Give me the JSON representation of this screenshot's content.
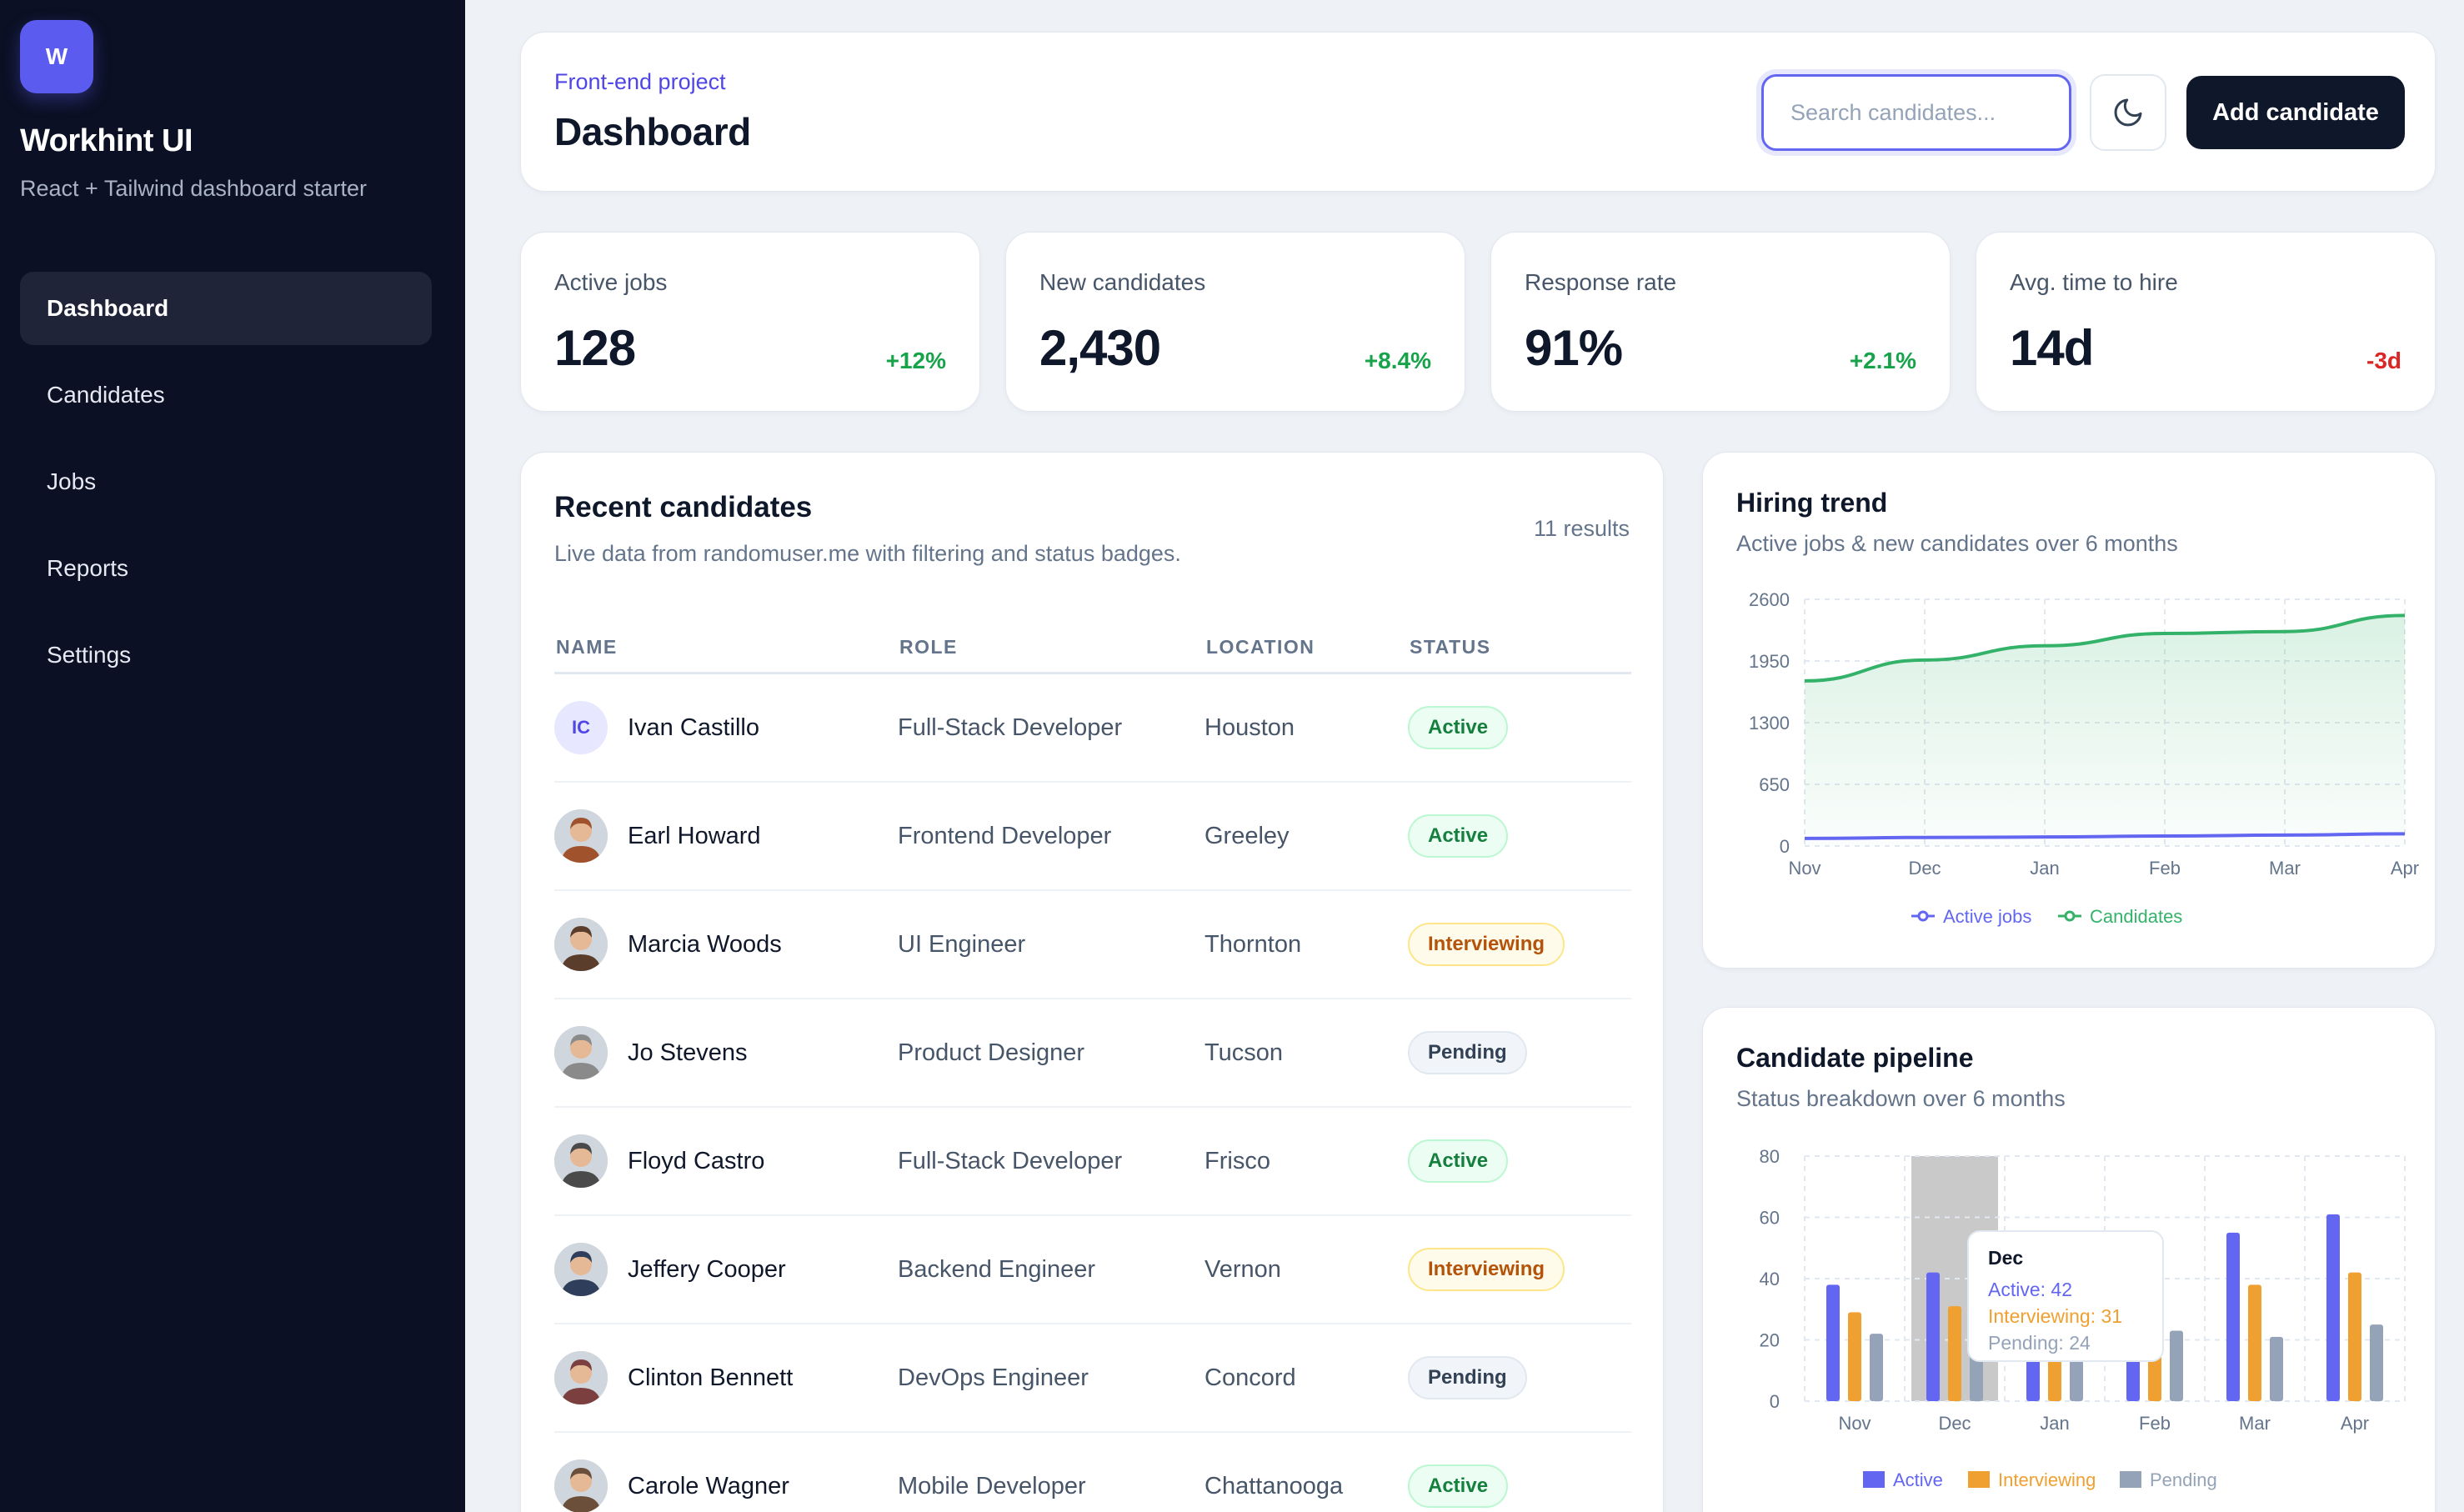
{
  "sidebar": {
    "logo_letter": "W",
    "brand": "Workhint UI",
    "tagline": "React + Tailwind dashboard starter",
    "items": [
      {
        "label": "Dashboard",
        "active": true
      },
      {
        "label": "Candidates",
        "active": false
      },
      {
        "label": "Jobs",
        "active": false
      },
      {
        "label": "Reports",
        "active": false
      },
      {
        "label": "Settings",
        "active": false
      }
    ]
  },
  "header": {
    "eyebrow": "Front-end project",
    "title": "Dashboard",
    "search_placeholder": "Search candidates...",
    "theme_icon": "moon-icon",
    "add_label": "Add candidate"
  },
  "stats": [
    {
      "label": "Active jobs",
      "value": "128",
      "delta": "+12%",
      "trend": "up"
    },
    {
      "label": "New candidates",
      "value": "2,430",
      "delta": "+8.4%",
      "trend": "up"
    },
    {
      "label": "Response rate",
      "value": "91%",
      "delta": "+2.1%",
      "trend": "up"
    },
    {
      "label": "Avg. time to hire",
      "value": "14d",
      "delta": "-3d",
      "trend": "down"
    }
  ],
  "candidates": {
    "title": "Recent candidates",
    "subtitle": "Live data from randomuser.me with filtering and status badges.",
    "count": "11 results",
    "columns": [
      "NAME",
      "ROLE",
      "LOCATION",
      "STATUS"
    ],
    "rows": [
      {
        "name": "Ivan Castillo",
        "initials": "IC",
        "role": "Full-Stack Developer",
        "location": "Houston",
        "status": "Active"
      },
      {
        "name": "Earl Howard",
        "role": "Frontend Developer",
        "location": "Greeley",
        "status": "Active"
      },
      {
        "name": "Marcia Woods",
        "role": "UI Engineer",
        "location": "Thornton",
        "status": "Interviewing"
      },
      {
        "name": "Jo Stevens",
        "role": "Product Designer",
        "location": "Tucson",
        "status": "Pending"
      },
      {
        "name": "Floyd Castro",
        "role": "Full-Stack Developer",
        "location": "Frisco",
        "status": "Active"
      },
      {
        "name": "Jeffery Cooper",
        "role": "Backend Engineer",
        "location": "Vernon",
        "status": "Interviewing"
      },
      {
        "name": "Clinton Bennett",
        "role": "DevOps Engineer",
        "location": "Concord",
        "status": "Pending"
      },
      {
        "name": "Carole Wagner",
        "role": "Mobile Developer",
        "location": "Chattanooga",
        "status": "Active"
      }
    ]
  },
  "colors": {
    "accent": "#5b5bf0",
    "active": "#6366f1",
    "interviewing": "#f0a030",
    "pending": "#94a3b8",
    "candidates_line": "#34b26a"
  },
  "chart_data": [
    {
      "type": "area",
      "title": "Hiring trend",
      "subtitle": "Active jobs & new candidates over 6 months",
      "categories": [
        "Nov",
        "Dec",
        "Jan",
        "Feb",
        "Mar",
        "Apr"
      ],
      "ylim": [
        0,
        2600
      ],
      "yticks": [
        "0",
        "650",
        "1300",
        "1950",
        "2600"
      ],
      "grid": true,
      "legend_position": "bottom",
      "series": [
        {
          "name": "Active jobs",
          "values": [
            80,
            90,
            95,
            105,
            115,
            128
          ]
        },
        {
          "name": "Candidates",
          "values": [
            1740,
            1960,
            2110,
            2240,
            2260,
            2430
          ]
        }
      ]
    },
    {
      "type": "bar",
      "title": "Candidate pipeline",
      "subtitle": "Status breakdown over 6 months",
      "categories": [
        "Nov",
        "Dec",
        "Jan",
        "Feb",
        "Mar",
        "Apr"
      ],
      "ylim": [
        0,
        80
      ],
      "yticks": [
        "0",
        "20",
        "40",
        "60",
        "80"
      ],
      "grid": true,
      "legend_position": "bottom",
      "series": [
        {
          "name": "Active",
          "values": [
            38,
            42,
            44,
            48,
            55,
            61
          ]
        },
        {
          "name": "Interviewing",
          "values": [
            29,
            31,
            30,
            35,
            38,
            42
          ]
        },
        {
          "name": "Pending",
          "values": [
            22,
            24,
            22,
            23,
            21,
            25
          ]
        }
      ],
      "highlight": "Dec",
      "tooltip": {
        "title": "Dec",
        "active": "Active: 42",
        "interviewing": "Interviewing: 31",
        "pending": "Pending: 24"
      }
    }
  ]
}
